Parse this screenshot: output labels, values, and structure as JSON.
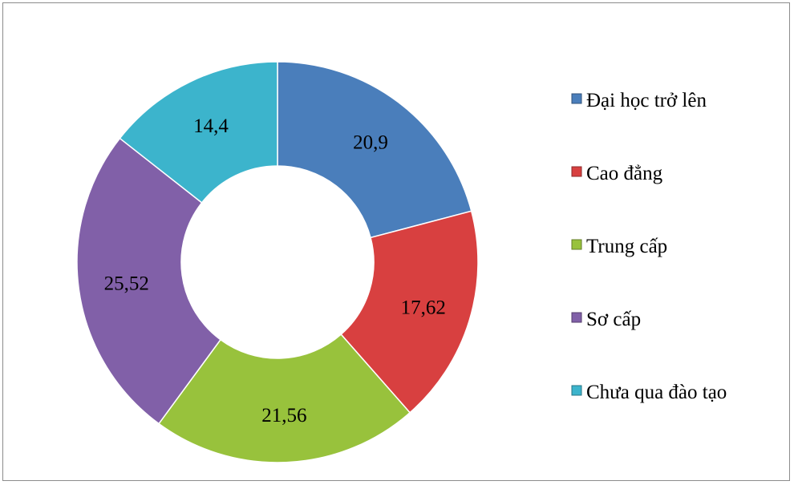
{
  "chart_data": {
    "type": "pie",
    "variant": "doughnut",
    "categories": [
      "Đại học trở lên",
      "Cao đẳng",
      "Trung cấp",
      "Sơ cấp",
      "Chưa qua đào tạo"
    ],
    "values": [
      20.9,
      17.62,
      21.56,
      25.52,
      14.4
    ],
    "value_labels": [
      "20,9",
      "17,62",
      "21,56",
      "25,52",
      "14,4"
    ],
    "colors": [
      "#4a7ebb",
      "#d84040",
      "#98c23c",
      "#8160a8",
      "#3cb4cc"
    ],
    "legend": "right",
    "title": ""
  }
}
